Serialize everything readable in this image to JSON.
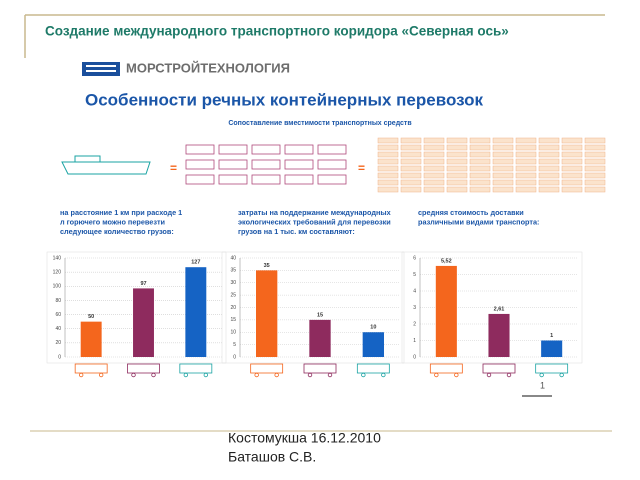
{
  "slide_title": "Создание международного транспортного коридора «Северная ось»",
  "company": "МОРСТРОЙТЕХНОЛОГИЯ",
  "heading": "Особенности речных контейнерных перевозок",
  "subheading": "Сопоставление вместимости транспортных средств",
  "page_number": "1",
  "footer": {
    "place_date": "Костомукша 16.12.2010",
    "author": "Баташов С.В."
  },
  "chart_data": [
    {
      "type": "bar",
      "title": "на расстояние 1 км при расходе 1 л горючего можно перевезти следующее количество грузов:",
      "categories": [
        null,
        null,
        null
      ],
      "values": [
        50,
        97,
        127
      ],
      "colors": [
        "#f4661d",
        "#8e2b5e",
        "#1563c4"
      ],
      "ylim": [
        0,
        140
      ],
      "yticks": [
        0,
        20,
        40,
        60,
        80,
        100,
        120,
        140
      ],
      "grid": true
    },
    {
      "type": "bar",
      "title": "затраты на поддержание международных экологических требований для перевозки грузов на 1 тыс. км составляют:",
      "categories": [
        null,
        null,
        null
      ],
      "values": [
        35,
        15,
        10
      ],
      "colors": [
        "#f4661d",
        "#8e2b5e",
        "#1563c4"
      ],
      "ylim": [
        0,
        40
      ],
      "yticks": [
        0,
        5,
        10,
        15,
        20,
        25,
        30,
        35,
        40
      ],
      "grid": true
    },
    {
      "type": "bar",
      "title": "средняя стоимость доставки различными видами транспорта:",
      "categories": [
        null,
        null,
        null
      ],
      "values": [
        5.52,
        2.61,
        1
      ],
      "value_labels": [
        "5,52",
        "2,61",
        "1"
      ],
      "colors": [
        "#f4661d",
        "#8e2b5e",
        "#1563c4"
      ],
      "ylim": [
        0,
        6
      ],
      "yticks": [
        0,
        1,
        2,
        3,
        4,
        5,
        6
      ],
      "grid": true
    }
  ]
}
